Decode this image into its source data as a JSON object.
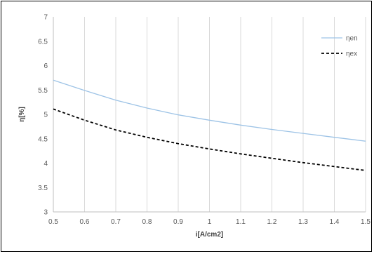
{
  "chart_data": {
    "type": "line",
    "title": "",
    "xlabel": "i[A/cm2]",
    "ylabel": "η[%]",
    "xlim": [
      0.5,
      1.5
    ],
    "ylim": [
      3,
      7
    ],
    "x_ticks": [
      "0.5",
      "0.6",
      "0.7",
      "0.8",
      "0.9",
      "1",
      "1.1",
      "1.2",
      "1.3",
      "1.4",
      "1.5"
    ],
    "y_ticks": [
      "3",
      "3.5",
      "4",
      "4.5",
      "5",
      "5.5",
      "6",
      "6.5",
      "7"
    ],
    "grid": "vertical",
    "legend_position": "top-right",
    "x": [
      0.5,
      0.6,
      0.7,
      0.8,
      0.9,
      1.0,
      1.1,
      1.2,
      1.3,
      1.4,
      1.5
    ],
    "series": [
      {
        "name": "ηen",
        "color": "#9DC3E6",
        "style": "solid",
        "values": [
          5.7,
          5.49,
          5.29,
          5.13,
          4.99,
          4.88,
          4.78,
          4.69,
          4.61,
          4.53,
          4.45
        ]
      },
      {
        "name": "ηex",
        "color": "#000000",
        "style": "dashed",
        "values": [
          5.11,
          4.88,
          4.68,
          4.53,
          4.4,
          4.29,
          4.19,
          4.1,
          4.01,
          3.93,
          3.85
        ]
      }
    ]
  }
}
